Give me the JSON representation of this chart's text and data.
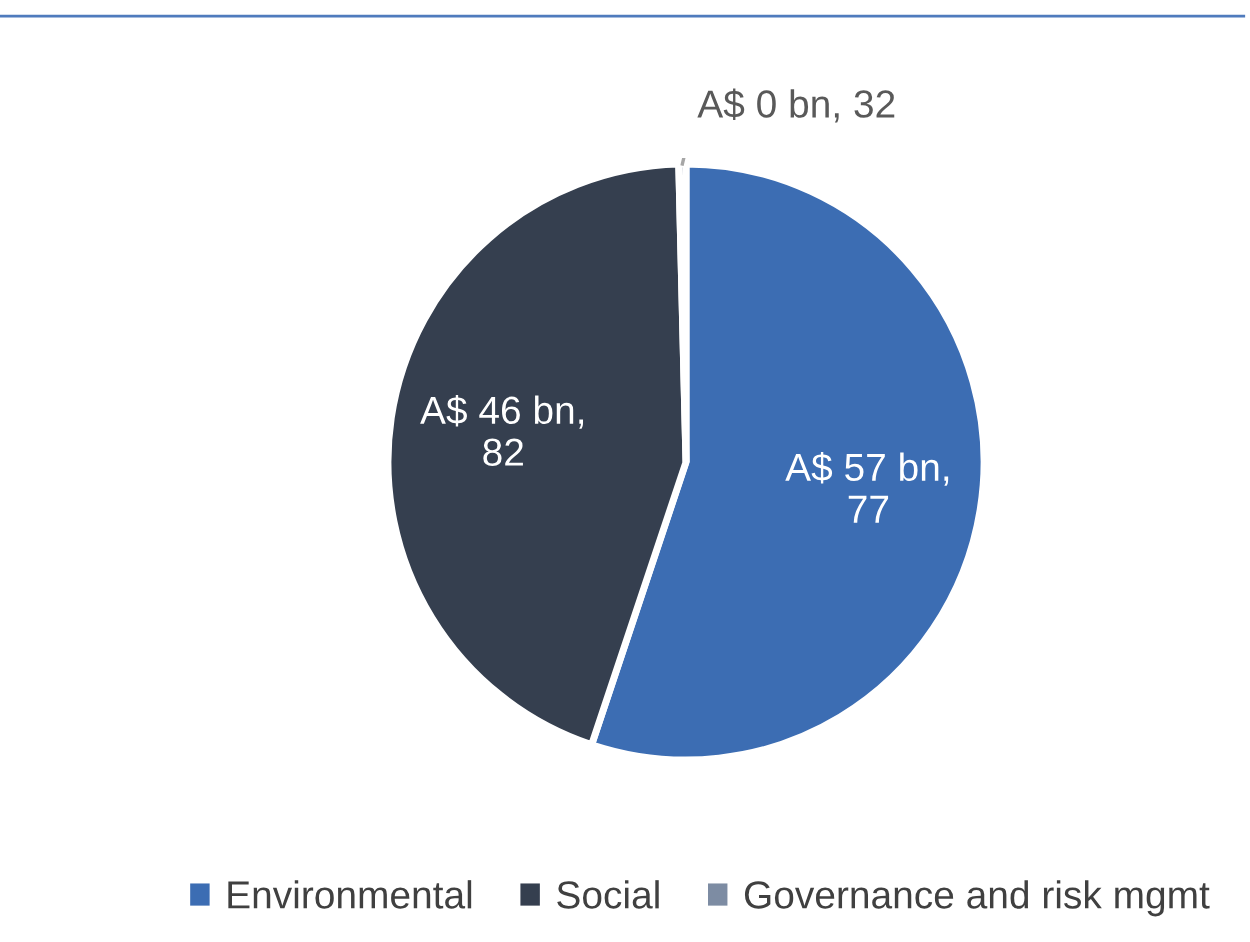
{
  "chart_data": {
    "type": "pie",
    "categories": [
      "Environmental",
      "Social",
      "Governance and risk mgmt"
    ],
    "values": [
      57,
      46,
      0.4
    ],
    "value_labels": [
      "A$ 57 bn,\n77",
      "A$ 46 bn,\n82",
      "A$ 0 bn, 32"
    ],
    "colors": [
      "#3c6db3",
      "#353f4f",
      "#7d8ca3"
    ],
    "legend": "bottom"
  }
}
